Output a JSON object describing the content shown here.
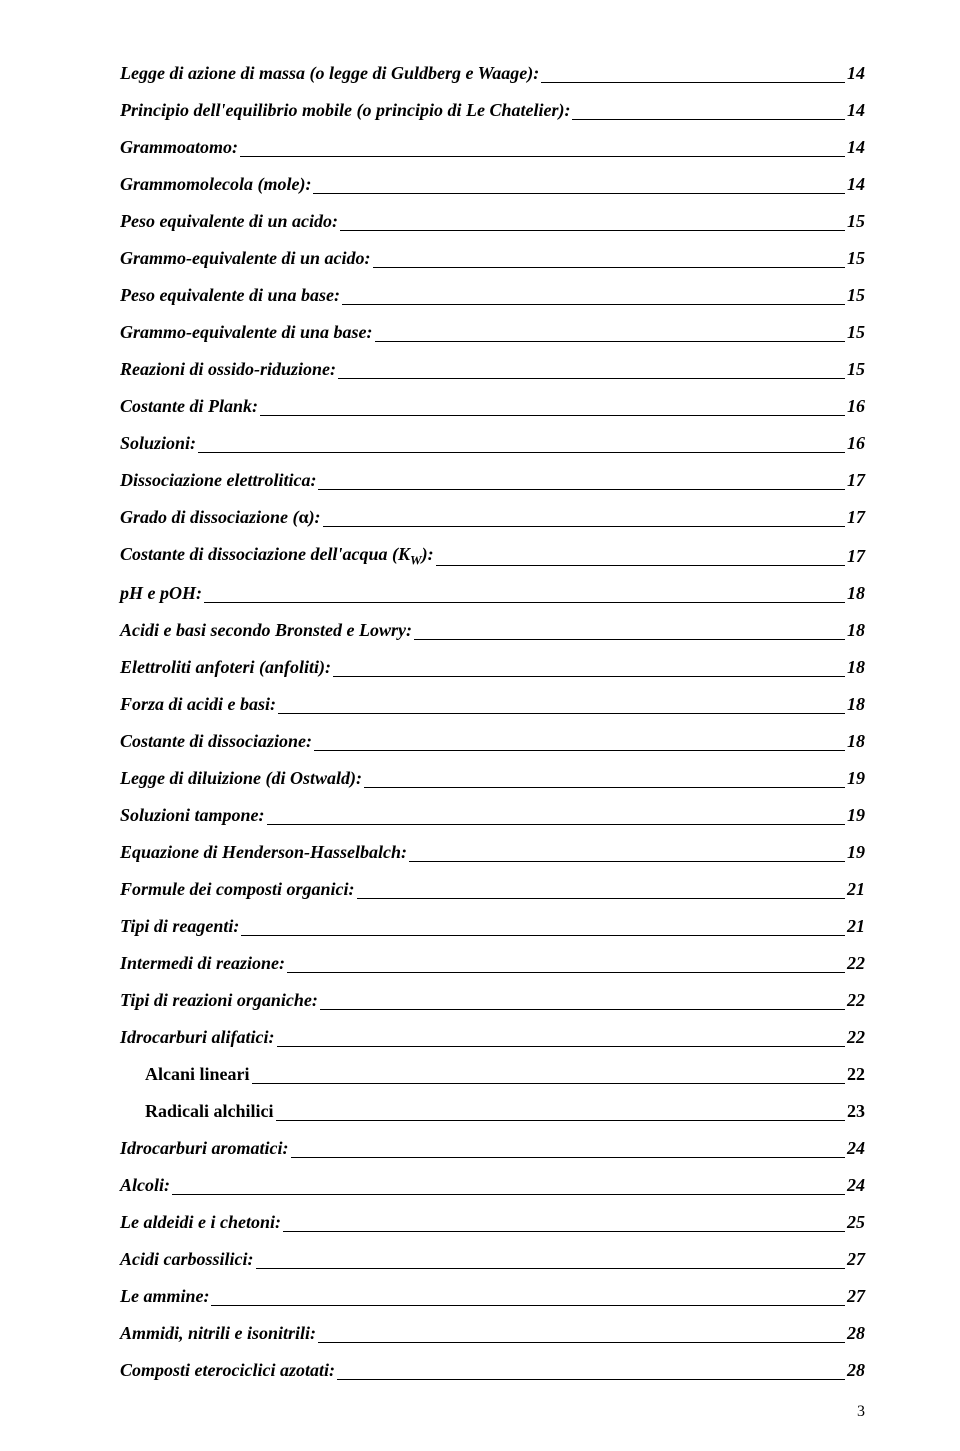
{
  "toc": [
    {
      "label": "Legge di azione di massa (o legge di Guldberg e Waage):",
      "page": "14",
      "style": "main"
    },
    {
      "label": "Principio dell'equilibrio mobile (o principio di Le Chatelier):",
      "page": "14",
      "style": "main"
    },
    {
      "label": "Grammoatomo:",
      "page": "14",
      "style": "main"
    },
    {
      "label": "Grammomolecola (mole):",
      "page": "14",
      "style": "main"
    },
    {
      "label": "Peso equivalente di un acido:",
      "page": "15",
      "style": "main"
    },
    {
      "label": "Grammo-equivalente di un acido:",
      "page": "15",
      "style": "main"
    },
    {
      "label": "Peso equivalente di una base:",
      "page": "15",
      "style": "main"
    },
    {
      "label": "Grammo-equivalente di una base:",
      "page": "15",
      "style": "main"
    },
    {
      "label": "Reazioni di ossido-riduzione:",
      "page": "15",
      "style": "main"
    },
    {
      "label": "Costante di Plank:",
      "page": "16",
      "style": "main"
    },
    {
      "label": "Soluzioni:",
      "page": "16",
      "style": "main"
    },
    {
      "label": "Dissociazione elettrolitica:",
      "page": "17",
      "style": "main"
    },
    {
      "label": "Grado di dissociazione (α):",
      "page": "17",
      "style": "main",
      "html": "Grado di dissociazione (<span class='alpha'>α</span>):"
    },
    {
      "label": "Costante di dissociazione dell'acqua (KW):",
      "page": "17",
      "style": "main",
      "html": "Costante di dissociazione dell'acqua (<span class='kw'>K</span><span class='kw-sub'>W</span>):"
    },
    {
      "label": "pH e  pOH:",
      "page": "18",
      "style": "main"
    },
    {
      "label": "Acidi e basi secondo Bronsted e Lowry:",
      "page": "18",
      "style": "main"
    },
    {
      "label": "Elettroliti anfoteri (anfoliti):",
      "page": "18",
      "style": "main"
    },
    {
      "label": "Forza di acidi e basi:",
      "page": "18",
      "style": "main"
    },
    {
      "label": "Costante di dissociazione:",
      "page": "18",
      "style": "main"
    },
    {
      "label": "Legge di diluizione (di Ostwald):",
      "page": "19",
      "style": "main"
    },
    {
      "label": "Soluzioni tampone:",
      "page": "19",
      "style": "main"
    },
    {
      "label": "Equazione di Henderson-Hasselbalch:",
      "page": "19",
      "style": "main"
    },
    {
      "label": "Formule dei composti organici:",
      "page": "21",
      "style": "main"
    },
    {
      "label": "Tipi di reagenti:",
      "page": "21",
      "style": "main"
    },
    {
      "label": "Intermedi di reazione:",
      "page": "22",
      "style": "main"
    },
    {
      "label": "Tipi di reazioni organiche:",
      "page": "22",
      "style": "main"
    },
    {
      "label": "Idrocarburi alifatici:",
      "page": "22",
      "style": "main"
    },
    {
      "label": "Alcani lineari",
      "page": "22",
      "style": "sub"
    },
    {
      "label": "Radicali alchilici",
      "page": "23",
      "style": "sub"
    },
    {
      "label": "Idrocarburi aromatici:",
      "page": "24",
      "style": "main"
    },
    {
      "label": "Alcoli:",
      "page": "24",
      "style": "main"
    },
    {
      "label": "Le aldeidi e i chetoni:",
      "page": "25",
      "style": "main"
    },
    {
      "label": "Acidi carbossilici:",
      "page": "27",
      "style": "main"
    },
    {
      "label": "Le ammine:",
      "page": "27",
      "style": "main"
    },
    {
      "label": "Ammidi, nitrili e isonitrili:",
      "page": "28",
      "style": "main"
    },
    {
      "label": "Composti eterociclici azotati:",
      "page": "28",
      "style": "main"
    }
  ],
  "pageNumber": "3"
}
